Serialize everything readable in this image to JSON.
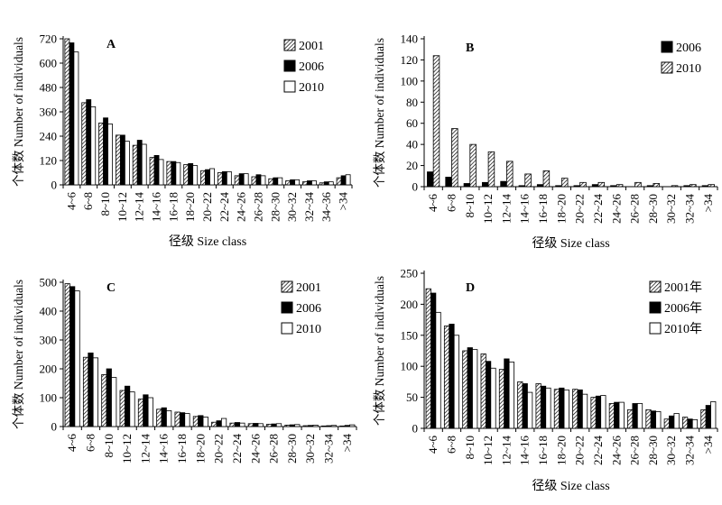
{
  "chart_data": [
    {
      "type": "bar",
      "panel": "A",
      "xlabel": "径级 Size class",
      "ylabel": "个体数 Number of individuals",
      "ylim": [
        0,
        720
      ],
      "yticks": [
        0,
        120,
        240,
        360,
        480,
        600,
        720
      ],
      "categories": [
        "4~6",
        "6~8",
        "8~10",
        "10~12",
        "12~14",
        "14~16",
        "16~18",
        "18~20",
        "20~22",
        "22~24",
        "24~26",
        "26~28",
        "28~30",
        "30~32",
        "32~34",
        "34~36",
        ">34"
      ],
      "legend_position": "top-right",
      "series": [
        {
          "name": "2001",
          "pattern": "hatch",
          "values": [
            720,
            405,
            305,
            245,
            195,
            135,
            115,
            100,
            70,
            60,
            45,
            40,
            30,
            20,
            15,
            10,
            35
          ]
        },
        {
          "name": "2006",
          "pattern": "solid",
          "values": [
            700,
            420,
            330,
            245,
            220,
            145,
            115,
            105,
            75,
            65,
            55,
            50,
            35,
            25,
            20,
            15,
            45
          ]
        },
        {
          "name": "2010",
          "pattern": "open",
          "values": [
            655,
            385,
            300,
            215,
            200,
            125,
            110,
            95,
            80,
            65,
            55,
            45,
            35,
            25,
            20,
            15,
            50
          ]
        }
      ]
    },
    {
      "type": "bar",
      "panel": "B",
      "xlabel": "径级 Size class",
      "ylabel": "个体数 Number of individuals",
      "ylim": [
        0,
        140
      ],
      "yticks": [
        0,
        20,
        40,
        60,
        80,
        100,
        120,
        140
      ],
      "categories": [
        "4~6",
        "6~8",
        "8~10",
        "10~12",
        "12~14",
        "14~16",
        "16~18",
        "18~20",
        "20~22",
        "22~24",
        "24~26",
        "26~28",
        "28~30",
        "30~32",
        "32~34",
        ">34"
      ],
      "legend_position": "top-right",
      "series": [
        {
          "name": "2006",
          "pattern": "solid",
          "values": [
            14,
            9,
            3,
            4,
            5,
            1,
            2,
            1,
            1,
            2,
            1,
            0,
            1,
            0,
            1,
            1
          ]
        },
        {
          "name": "2010",
          "pattern": "hatch",
          "values": [
            124,
            55,
            40,
            33,
            24,
            12,
            15,
            8,
            4,
            4,
            2,
            4,
            3,
            1,
            2,
            2
          ]
        }
      ]
    },
    {
      "type": "bar",
      "panel": "C",
      "xlabel": "",
      "ylabel": "个体数 Number of individuals",
      "ylim": [
        0,
        500
      ],
      "yticks": [
        0,
        100,
        200,
        300,
        400,
        500
      ],
      "categories": [
        "4~6",
        "6~8",
        "8~10",
        "10~12",
        "12~14",
        "14~16",
        "16~18",
        "18~20",
        "20~22",
        "22~24",
        "24~26",
        "26~28",
        "28~30",
        "30~32",
        "32~34",
        ">34"
      ],
      "legend_position": "top-right",
      "series": [
        {
          "name": "2001",
          "pattern": "hatch",
          "values": [
            495,
            240,
            180,
            125,
            95,
            60,
            50,
            35,
            15,
            12,
            10,
            8,
            5,
            3,
            2,
            2
          ]
        },
        {
          "name": "2006",
          "pattern": "solid",
          "values": [
            485,
            255,
            200,
            140,
            110,
            65,
            48,
            38,
            20,
            14,
            11,
            9,
            6,
            4,
            3,
            4
          ]
        },
        {
          "name": "2010",
          "pattern": "open",
          "values": [
            470,
            238,
            170,
            120,
            100,
            55,
            45,
            33,
            28,
            12,
            10,
            10,
            7,
            5,
            4,
            6
          ]
        }
      ]
    },
    {
      "type": "bar",
      "panel": "D",
      "xlabel": "径级 Size class",
      "ylabel": "个体数 Number of individuals",
      "ylim": [
        0,
        250
      ],
      "yticks": [
        0,
        50,
        100,
        150,
        200,
        250
      ],
      "categories": [
        "4~6",
        "6~8",
        "8~10",
        "10~12",
        "12~14",
        "14~16",
        "16~18",
        "18~20",
        "20~22",
        "22~24",
        "24~26",
        "26~28",
        "28~30",
        "30~32",
        "32~34",
        ">34"
      ],
      "legend_position": "top-right",
      "series": [
        {
          "name": "2001年",
          "pattern": "hatch",
          "values": [
            225,
            165,
            125,
            120,
            95,
            75,
            72,
            63,
            63,
            50,
            40,
            30,
            30,
            15,
            18,
            30
          ]
        },
        {
          "name": "2006年",
          "pattern": "solid",
          "values": [
            218,
            168,
            130,
            108,
            112,
            72,
            68,
            65,
            62,
            52,
            42,
            40,
            28,
            20,
            15,
            37
          ]
        },
        {
          "name": "2010年",
          "pattern": "open",
          "values": [
            187,
            150,
            127,
            97,
            107,
            58,
            65,
            62,
            55,
            53,
            42,
            40,
            27,
            24,
            14,
            43
          ]
        }
      ]
    }
  ]
}
